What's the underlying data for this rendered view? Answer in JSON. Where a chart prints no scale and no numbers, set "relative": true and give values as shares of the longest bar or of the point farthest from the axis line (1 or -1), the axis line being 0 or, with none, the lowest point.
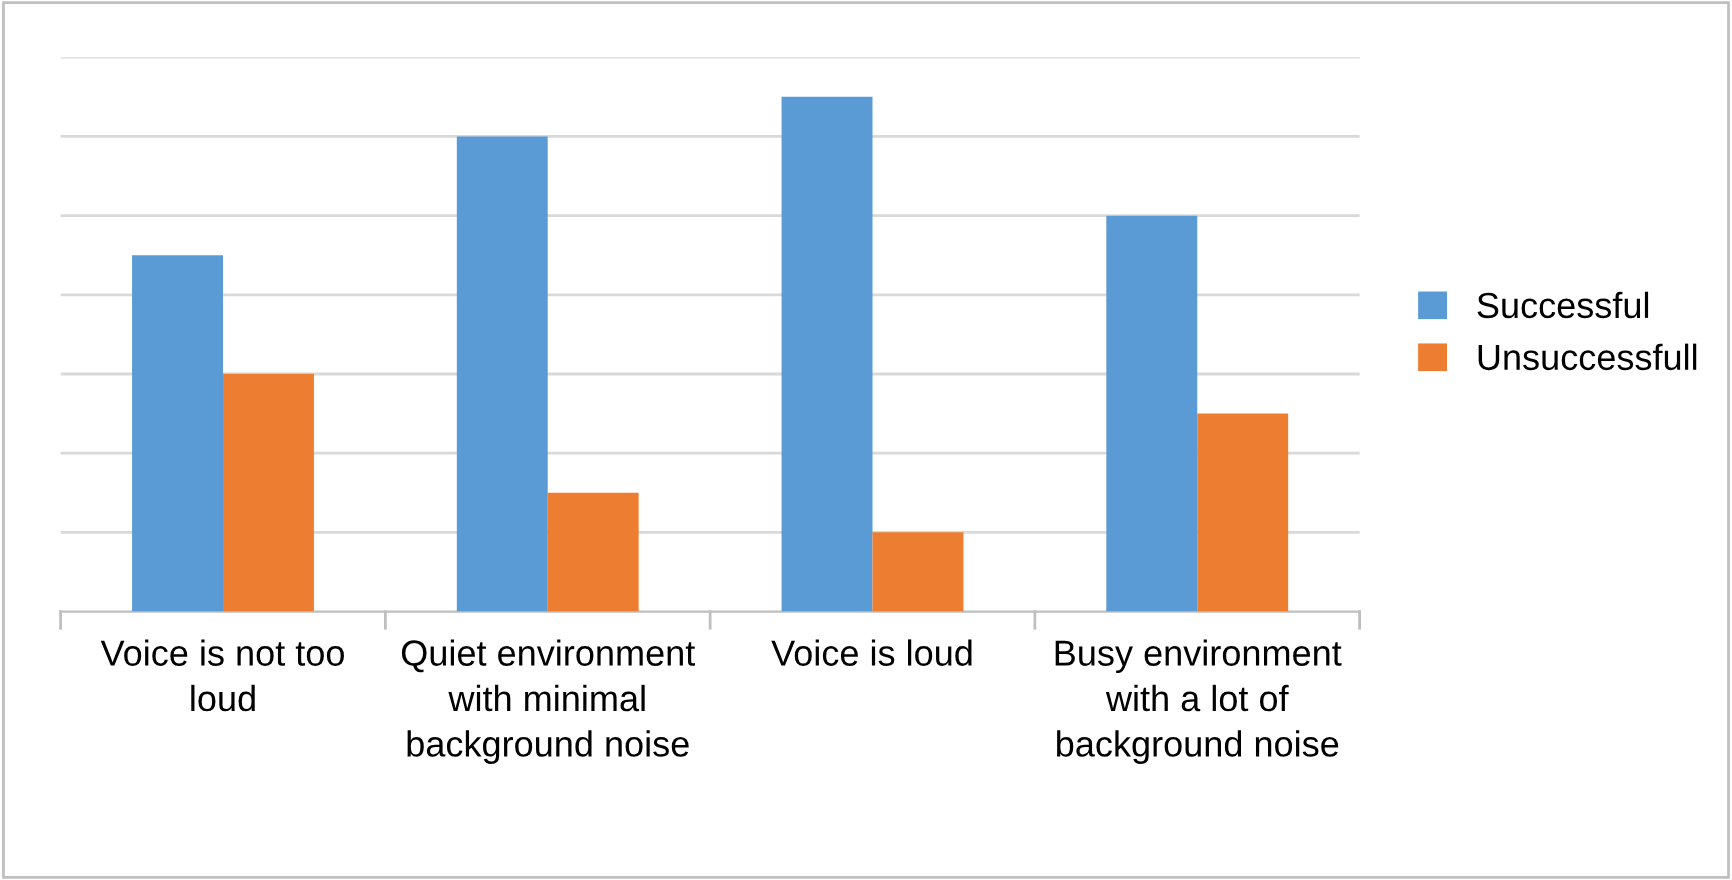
{
  "chart_data": {
    "type": "bar",
    "relative": true,
    "categories": [
      "Voice is not too loud",
      "Quiet environment with minimal background noise",
      "Voice is loud",
      "Busy environment with a lot of background noise"
    ],
    "series": [
      {
        "name": "Successful",
        "color": "#5b9bd5",
        "values": [
          0.692,
          0.923,
          1,
          0.769
        ]
      },
      {
        "name": "Unsuccessfull",
        "color": "#ed7d31",
        "values": [
          0.462,
          0.231,
          0.154,
          0.385
        ]
      }
    ],
    "grid": "y",
    "legend": "right"
  }
}
